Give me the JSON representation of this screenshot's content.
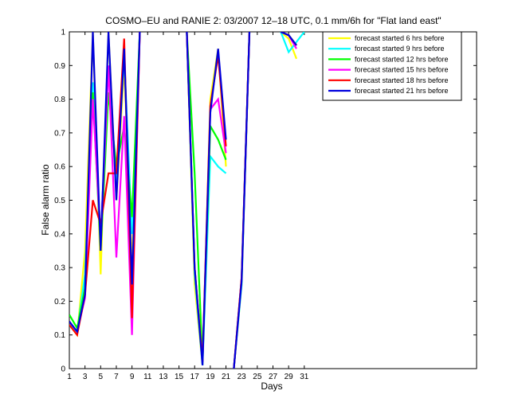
{
  "chart_data": {
    "type": "line",
    "title": "COSMO–EU and RANIE 2: 03/2007 12–18 UTC, 0.1 mm/6h for \"Flat land east\"",
    "xlabel": "Days",
    "ylabel": "False alarm ratio",
    "xlim": [
      1,
      53
    ],
    "ylim": [
      0,
      1
    ],
    "xticks": [
      1,
      3,
      5,
      7,
      9,
      11,
      13,
      15,
      17,
      19,
      21,
      23,
      25,
      27,
      29,
      31
    ],
    "yticks": [
      0,
      0.1,
      0.2,
      0.3,
      0.4,
      0.5,
      0.6,
      0.7,
      0.8,
      0.9,
      1
    ],
    "legend_position": "top-right",
    "grid": false,
    "series": [
      {
        "name": "forecast started 6 hrs before",
        "color": "#ffff00",
        "points": [
          [
            1,
            0.13
          ],
          [
            2,
            0.1
          ],
          [
            3,
            0.35
          ],
          [
            4,
            1.0
          ],
          [
            5,
            0.28
          ],
          [
            6,
            1.0
          ],
          [
            7,
            0.5
          ],
          [
            8,
            0.9
          ],
          [
            9,
            0.3
          ],
          [
            10,
            1.0
          ],
          null,
          [
            16,
            1.0
          ],
          [
            17,
            0.25
          ],
          [
            18,
            0.01
          ],
          [
            19,
            0.8
          ],
          [
            20,
            0.95
          ],
          [
            21,
            0.6
          ],
          null,
          [
            22,
            0.0
          ],
          [
            23,
            0.25
          ],
          [
            24,
            1.0
          ],
          null,
          [
            28,
            1.0
          ],
          [
            29,
            0.98
          ],
          [
            30,
            0.92
          ]
        ]
      },
      {
        "name": "forecast started 9 hrs before",
        "color": "#00ffff",
        "points": [
          [
            1,
            0.13
          ],
          [
            2,
            0.11
          ],
          [
            3,
            0.28
          ],
          [
            4,
            0.85
          ],
          [
            5,
            0.38
          ],
          [
            6,
            0.9
          ],
          [
            7,
            0.55
          ],
          [
            8,
            0.93
          ],
          [
            9,
            0.4
          ],
          [
            10,
            1.0
          ],
          null,
          [
            16,
            1.0
          ],
          [
            17,
            0.28
          ],
          [
            18,
            0.01
          ],
          [
            19,
            0.63
          ],
          [
            20,
            0.6
          ],
          [
            21,
            0.58
          ],
          null,
          [
            22,
            0.0
          ],
          [
            23,
            0.25
          ],
          [
            24,
            1.0
          ],
          null,
          [
            28,
            1.0
          ],
          [
            29,
            0.94
          ],
          [
            30,
            0.97
          ],
          [
            31,
            1.0
          ]
        ]
      },
      {
        "name": "forecast started 12 hrs before",
        "color": "#00ff00",
        "points": [
          [
            1,
            0.16
          ],
          [
            2,
            0.12
          ],
          [
            3,
            0.24
          ],
          [
            4,
            0.82
          ],
          [
            5,
            0.35
          ],
          [
            6,
            0.82
          ],
          [
            7,
            0.6
          ],
          [
            8,
            0.72
          ],
          [
            9,
            0.45
          ],
          [
            10,
            1.0
          ],
          null,
          [
            16,
            1.0
          ],
          [
            17,
            0.58
          ],
          [
            18,
            0.02
          ],
          [
            19,
            0.72
          ],
          [
            20,
            0.68
          ],
          [
            21,
            0.62
          ],
          null,
          [
            22,
            0.0
          ],
          [
            23,
            0.27
          ],
          [
            24,
            1.0
          ],
          null,
          [
            28,
            1.0
          ],
          [
            29,
            0.99
          ],
          [
            30,
            0.96
          ]
        ]
      },
      {
        "name": "forecast started 15 hrs before",
        "color": "#ff00ff",
        "points": [
          [
            1,
            0.14
          ],
          [
            2,
            0.11
          ],
          [
            3,
            0.21
          ],
          [
            4,
            0.8
          ],
          [
            5,
            0.38
          ],
          [
            6,
            0.9
          ],
          [
            7,
            0.33
          ],
          [
            8,
            0.75
          ],
          [
            9,
            0.1
          ],
          [
            10,
            1.0
          ],
          null,
          [
            16,
            1.0
          ],
          [
            17,
            0.3
          ],
          [
            18,
            0.02
          ],
          [
            19,
            0.77
          ],
          [
            20,
            0.8
          ],
          [
            21,
            0.64
          ],
          null,
          [
            22,
            0.0
          ],
          [
            23,
            0.27
          ],
          [
            24,
            1.0
          ],
          null,
          [
            28,
            1.0
          ],
          [
            29,
            0.99
          ],
          [
            30,
            0.95
          ]
        ]
      },
      {
        "name": "forecast started 18 hrs before",
        "color": "#ff0000",
        "points": [
          [
            1,
            0.13
          ],
          [
            2,
            0.1
          ],
          [
            3,
            0.22
          ],
          [
            4,
            0.5
          ],
          [
            5,
            0.43
          ],
          [
            6,
            0.58
          ],
          [
            7,
            0.58
          ],
          [
            8,
            0.98
          ],
          [
            9,
            0.15
          ],
          [
            10,
            1.0
          ],
          null,
          [
            16,
            1.0
          ],
          [
            17,
            0.3
          ],
          [
            18,
            0.02
          ],
          [
            19,
            0.78
          ],
          [
            20,
            0.93
          ],
          [
            21,
            0.66
          ],
          null,
          [
            22,
            0.0
          ],
          [
            23,
            0.27
          ],
          [
            24,
            1.0
          ],
          null,
          [
            28,
            1.0
          ],
          [
            29,
            0.99
          ],
          [
            30,
            0.96
          ]
        ]
      },
      {
        "name": "forecast started 21 hrs before",
        "color": "#0000dd",
        "points": [
          [
            1,
            0.14
          ],
          [
            2,
            0.11
          ],
          [
            3,
            0.22
          ],
          [
            4,
            1.0
          ],
          [
            5,
            0.35
          ],
          [
            6,
            1.0
          ],
          [
            7,
            0.5
          ],
          [
            8,
            0.95
          ],
          [
            9,
            0.25
          ],
          [
            10,
            1.0
          ],
          null,
          [
            16,
            1.0
          ],
          [
            17,
            0.3
          ],
          [
            18,
            0.01
          ],
          [
            19,
            0.76
          ],
          [
            20,
            0.95
          ],
          [
            21,
            0.68
          ],
          null,
          [
            22,
            0.0
          ],
          [
            23,
            0.26
          ],
          [
            24,
            1.0
          ],
          null,
          [
            28,
            1.0
          ],
          [
            29,
            0.99
          ],
          [
            30,
            0.96
          ]
        ]
      }
    ]
  }
}
